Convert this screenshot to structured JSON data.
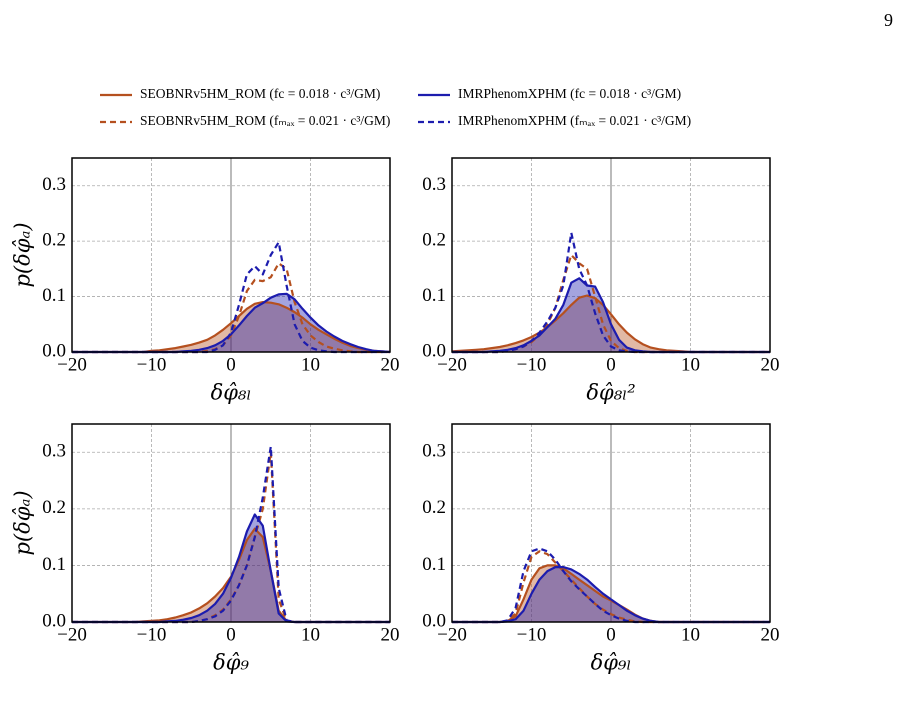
{
  "page_number": "9",
  "chart_data": [
    {
      "type": "line",
      "ylabel": "p(δφ̂ₐ)",
      "xlabel": "δφ̂₈ₗ",
      "vline": 0,
      "grid": true,
      "xlim": [
        -20,
        20
      ],
      "ylim": [
        0,
        0.35
      ],
      "xticks": [
        {
          "value": -20,
          "label": "−20"
        },
        {
          "value": -10,
          "label": "−10"
        },
        0,
        10,
        20
      ],
      "yticks": [
        {
          "value": 0,
          "label": "0.0"
        },
        0.1,
        0.2,
        0.3
      ],
      "x": [
        -20,
        -19,
        -18,
        -17,
        -16,
        -15,
        -14,
        -13,
        -12,
        -11,
        -10,
        -9,
        -8,
        -7,
        -6,
        -5,
        -4,
        -3,
        -2,
        -1,
        0,
        1,
        2,
        3,
        4,
        5,
        6,
        7,
        8,
        9,
        10,
        11,
        12,
        13,
        14,
        15,
        16,
        17,
        18,
        19,
        20
      ],
      "series": [
        {
          "name": "SEOBNRv5HM_ROM (fc = 0.018 · c³/GM)",
          "color": "#b5501f",
          "linestyle": "solid",
          "fill": true,
          "values": [
            0,
            0,
            0,
            0,
            0,
            0,
            0,
            0,
            0,
            0,
            0.002,
            0.003,
            0.005,
            0.007,
            0.01,
            0.013,
            0.017,
            0.022,
            0.03,
            0.04,
            0.052,
            0.065,
            0.078,
            0.087,
            0.09,
            0.089,
            0.086,
            0.08,
            0.072,
            0.062,
            0.05,
            0.04,
            0.032,
            0.024,
            0.017,
            0.011,
            0.007,
            0.004,
            0.002,
            0.001,
            0
          ]
        },
        {
          "name": "SEOBNRv5HM_ROM (fₘₐₓ = 0.021 · c³/GM)",
          "color": "#b5501f",
          "linestyle": "dashed",
          "fill": false,
          "values": [
            0,
            0,
            0,
            0,
            0,
            0,
            0,
            0,
            0,
            0,
            0,
            0,
            0,
            0,
            0,
            0,
            0,
            0.002,
            0.005,
            0.012,
            0.03,
            0.065,
            0.11,
            0.13,
            0.128,
            0.135,
            0.16,
            0.15,
            0.09,
            0.05,
            0.03,
            0.018,
            0.01,
            0.006,
            0.003,
            0.001,
            0,
            0,
            0,
            0,
            0
          ]
        },
        {
          "name": "IMRPhenomXPHM (fc = 0.018 · c³/GM)",
          "color": "#1c1cae",
          "linestyle": "solid",
          "fill": true,
          "values": [
            0,
            0,
            0,
            0,
            0,
            0,
            0,
            0,
            0,
            0,
            0,
            0,
            0,
            0,
            0.001,
            0.002,
            0.004,
            0.007,
            0.012,
            0.02,
            0.032,
            0.048,
            0.065,
            0.08,
            0.088,
            0.098,
            0.104,
            0.105,
            0.095,
            0.078,
            0.062,
            0.048,
            0.037,
            0.028,
            0.02,
            0.014,
            0.009,
            0.005,
            0.002,
            0.001,
            0
          ]
        },
        {
          "name": "IMRPhenomXPHM (fₘₐₓ = 0.021 · c³/GM)",
          "color": "#1c1cae",
          "linestyle": "dashed",
          "fill": false,
          "values": [
            0,
            0,
            0,
            0,
            0,
            0,
            0,
            0,
            0,
            0,
            0,
            0,
            0,
            0,
            0,
            0,
            0,
            0,
            0.004,
            0.012,
            0.035,
            0.085,
            0.14,
            0.155,
            0.14,
            0.175,
            0.198,
            0.12,
            0.05,
            0.02,
            0.008,
            0.003,
            0.001,
            0,
            0,
            0,
            0,
            0,
            0,
            0,
            0
          ]
        }
      ]
    },
    {
      "type": "line",
      "xlabel": "δφ̂₈ₗ²",
      "vline": 0,
      "grid": true,
      "xlim": [
        -20,
        20
      ],
      "ylim": [
        0,
        0.35
      ],
      "xticks": [
        {
          "value": -20,
          "label": "−20"
        },
        {
          "value": -10,
          "label": "−10"
        },
        0,
        10,
        20
      ],
      "yticks": [
        {
          "value": 0,
          "label": "0.0"
        },
        0.1,
        0.2,
        0.3
      ],
      "x": [
        -20,
        -19,
        -18,
        -17,
        -16,
        -15,
        -14,
        -13,
        -12,
        -11,
        -10,
        -9,
        -8,
        -7,
        -6,
        -5,
        -4,
        -3,
        -2,
        -1,
        0,
        1,
        2,
        3,
        4,
        5,
        6,
        7,
        8,
        9,
        10,
        11,
        12,
        13,
        14,
        15,
        16,
        17,
        18,
        19,
        20
      ],
      "series": [
        {
          "color": "#b5501f",
          "linestyle": "solid",
          "fill": true,
          "values": [
            0.001,
            0.002,
            0.003,
            0.004,
            0.005,
            0.007,
            0.009,
            0.012,
            0.016,
            0.021,
            0.027,
            0.035,
            0.045,
            0.057,
            0.07,
            0.085,
            0.098,
            0.102,
            0.097,
            0.085,
            0.068,
            0.05,
            0.035,
            0.023,
            0.014,
            0.008,
            0.005,
            0.003,
            0.002,
            0.001,
            0,
            0,
            0,
            0,
            0,
            0,
            0,
            0,
            0,
            0,
            0
          ]
        },
        {
          "color": "#b5501f",
          "linestyle": "dashed",
          "fill": false,
          "values": [
            0,
            0,
            0,
            0,
            0,
            0,
            0,
            0.002,
            0.005,
            0.01,
            0.018,
            0.03,
            0.05,
            0.08,
            0.13,
            0.175,
            0.16,
            0.15,
            0.1,
            0.05,
            0.02,
            0.007,
            0.002,
            0,
            0,
            0,
            0,
            0,
            0,
            0,
            0,
            0,
            0,
            0,
            0,
            0,
            0,
            0,
            0,
            0,
            0
          ]
        },
        {
          "color": "#1c1cae",
          "linestyle": "solid",
          "fill": true,
          "values": [
            0,
            0,
            0,
            0,
            0,
            0.001,
            0.002,
            0.004,
            0.007,
            0.012,
            0.02,
            0.03,
            0.045,
            0.06,
            0.085,
            0.125,
            0.133,
            0.12,
            0.118,
            0.09,
            0.05,
            0.022,
            0.008,
            0.003,
            0.001,
            0,
            0,
            0,
            0,
            0,
            0,
            0,
            0,
            0,
            0,
            0,
            0,
            0,
            0,
            0,
            0
          ]
        },
        {
          "color": "#1c1cae",
          "linestyle": "dashed",
          "fill": false,
          "values": [
            0,
            0,
            0,
            0,
            0,
            0,
            0,
            0.002,
            0.005,
            0.01,
            0.02,
            0.035,
            0.055,
            0.08,
            0.12,
            0.215,
            0.15,
            0.12,
            0.07,
            0.03,
            0.01,
            0.003,
            0.001,
            0,
            0,
            0,
            0,
            0,
            0,
            0,
            0,
            0,
            0,
            0,
            0,
            0,
            0,
            0,
            0,
            0,
            0
          ]
        }
      ]
    },
    {
      "type": "line",
      "ylabel": "p(δφ̂ₐ)",
      "xlabel": "δφ̂₉",
      "vline": 0,
      "grid": true,
      "xlim": [
        -20,
        20
      ],
      "ylim": [
        0,
        0.35
      ],
      "xticks": [
        {
          "value": -20,
          "label": "−20"
        },
        {
          "value": -10,
          "label": "−10"
        },
        0,
        10,
        20
      ],
      "yticks": [
        {
          "value": 0,
          "label": "0.0"
        },
        0.1,
        0.2,
        0.3
      ],
      "x": [
        -20,
        -19,
        -18,
        -17,
        -16,
        -15,
        -14,
        -13,
        -12,
        -11,
        -10,
        -9,
        -8,
        -7,
        -6,
        -5,
        -4,
        -3,
        -2,
        -1,
        0,
        1,
        2,
        3,
        4,
        5,
        6,
        7,
        8,
        9,
        10,
        11,
        12,
        13,
        14,
        15,
        16,
        17,
        18,
        19,
        20
      ],
      "series": [
        {
          "color": "#b5501f",
          "linestyle": "solid",
          "fill": true,
          "values": [
            0,
            0,
            0,
            0,
            0,
            0,
            0,
            0,
            0,
            0.001,
            0.002,
            0.003,
            0.005,
            0.008,
            0.012,
            0.017,
            0.024,
            0.033,
            0.045,
            0.06,
            0.08,
            0.11,
            0.145,
            0.165,
            0.15,
            0.09,
            0.02,
            0.002,
            0,
            0,
            0,
            0,
            0,
            0,
            0,
            0,
            0,
            0,
            0,
            0,
            0
          ]
        },
        {
          "color": "#b5501f",
          "linestyle": "dashed",
          "fill": false,
          "values": [
            0,
            0,
            0,
            0,
            0,
            0,
            0,
            0,
            0,
            0,
            0,
            0,
            0,
            0,
            0,
            0,
            0.002,
            0.005,
            0.012,
            0.022,
            0.04,
            0.065,
            0.1,
            0.15,
            0.2,
            0.3,
            0.04,
            0.002,
            0,
            0,
            0,
            0,
            0,
            0,
            0,
            0,
            0,
            0,
            0,
            0,
            0
          ]
        },
        {
          "color": "#1c1cae",
          "linestyle": "solid",
          "fill": true,
          "values": [
            0,
            0,
            0,
            0,
            0,
            0,
            0,
            0,
            0,
            0,
            0,
            0,
            0.001,
            0.002,
            0.004,
            0.007,
            0.012,
            0.02,
            0.032,
            0.05,
            0.078,
            0.115,
            0.16,
            0.19,
            0.17,
            0.09,
            0.015,
            0.001,
            0,
            0,
            0,
            0,
            0,
            0,
            0,
            0,
            0,
            0,
            0,
            0,
            0
          ]
        },
        {
          "color": "#1c1cae",
          "linestyle": "dashed",
          "fill": false,
          "values": [
            0,
            0,
            0,
            0,
            0,
            0,
            0,
            0,
            0,
            0,
            0,
            0,
            0,
            0,
            0,
            0,
            0.002,
            0.005,
            0.01,
            0.02,
            0.038,
            0.065,
            0.1,
            0.15,
            0.22,
            0.31,
            0.06,
            0.003,
            0,
            0,
            0,
            0,
            0,
            0,
            0,
            0,
            0,
            0,
            0,
            0,
            0
          ]
        }
      ]
    },
    {
      "type": "line",
      "xlabel": "δφ̂₉ₗ",
      "vline": 0,
      "grid": true,
      "xlim": [
        -20,
        20
      ],
      "ylim": [
        0,
        0.35
      ],
      "xticks": [
        {
          "value": -20,
          "label": "−20"
        },
        {
          "value": -10,
          "label": "−10"
        },
        0,
        10,
        20
      ],
      "yticks": [
        {
          "value": 0,
          "label": "0.0"
        },
        0.1,
        0.2,
        0.3
      ],
      "x": [
        -20,
        -19,
        -18,
        -17,
        -16,
        -15,
        -14,
        -13,
        -12,
        -11,
        -10,
        -9,
        -8,
        -7,
        -6,
        -5,
        -4,
        -3,
        -2,
        -1,
        0,
        1,
        2,
        3,
        4,
        5,
        6,
        7,
        8,
        9,
        10,
        11,
        12,
        13,
        14,
        15,
        16,
        17,
        18,
        19,
        20
      ],
      "series": [
        {
          "color": "#b5501f",
          "linestyle": "solid",
          "fill": true,
          "values": [
            0,
            0,
            0,
            0,
            0,
            0,
            0,
            0.002,
            0.01,
            0.04,
            0.075,
            0.095,
            0.1,
            0.1,
            0.095,
            0.085,
            0.075,
            0.065,
            0.055,
            0.045,
            0.038,
            0.03,
            0.022,
            0.013,
            0.006,
            0.002,
            0,
            0,
            0,
            0,
            0,
            0,
            0,
            0,
            0,
            0,
            0,
            0,
            0,
            0,
            0
          ]
        },
        {
          "color": "#b5501f",
          "linestyle": "dashed",
          "fill": false,
          "values": [
            0,
            0,
            0,
            0,
            0,
            0,
            0,
            0.002,
            0.015,
            0.07,
            0.115,
            0.125,
            0.12,
            0.105,
            0.09,
            0.075,
            0.06,
            0.045,
            0.032,
            0.022,
            0.014,
            0.008,
            0.004,
            0.001,
            0,
            0,
            0,
            0,
            0,
            0,
            0,
            0,
            0,
            0,
            0,
            0,
            0,
            0,
            0,
            0,
            0
          ]
        },
        {
          "color": "#1c1cae",
          "linestyle": "solid",
          "fill": true,
          "values": [
            0,
            0,
            0,
            0,
            0,
            0,
            0,
            0.001,
            0.005,
            0.02,
            0.05,
            0.075,
            0.09,
            0.097,
            0.097,
            0.093,
            0.085,
            0.075,
            0.062,
            0.05,
            0.04,
            0.03,
            0.02,
            0.012,
            0.006,
            0.002,
            0,
            0,
            0,
            0,
            0,
            0,
            0,
            0,
            0,
            0,
            0,
            0,
            0,
            0,
            0
          ]
        },
        {
          "color": "#1c1cae",
          "linestyle": "dashed",
          "fill": false,
          "values": [
            0,
            0,
            0,
            0,
            0,
            0,
            0,
            0.003,
            0.025,
            0.09,
            0.125,
            0.13,
            0.125,
            0.11,
            0.09,
            0.072,
            0.058,
            0.045,
            0.032,
            0.02,
            0.012,
            0.006,
            0.002,
            0,
            0,
            0,
            0,
            0,
            0,
            0,
            0,
            0,
            0,
            0,
            0,
            0,
            0,
            0,
            0,
            0,
            0
          ]
        }
      ]
    }
  ]
}
